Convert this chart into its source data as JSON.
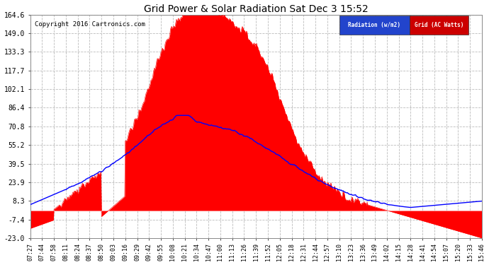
{
  "title": "Grid Power & Solar Radiation Sat Dec 3 15:52",
  "copyright": "Copyright 2016 Cartronics.com",
  "background_color": "#ffffff",
  "plot_bg_color": "#ffffff",
  "grid_color": "#bbbbbb",
  "yticks": [
    -23.0,
    -7.4,
    8.3,
    23.9,
    39.5,
    55.2,
    70.8,
    86.4,
    102.1,
    117.7,
    133.3,
    149.0,
    164.6
  ],
  "ylim": [
    -23.0,
    164.6
  ],
  "radiation_color": "#0000ff",
  "grid_fill_color": "#ff0000",
  "legend_radiation_bg": "#0000cc",
  "legend_grid_bg": "#cc0000",
  "xtick_labels": [
    "07:27",
    "07:44",
    "07:58",
    "08:11",
    "08:24",
    "08:37",
    "08:50",
    "09:03",
    "09:16",
    "09:29",
    "09:42",
    "09:55",
    "10:08",
    "10:21",
    "10:34",
    "10:47",
    "11:00",
    "11:13",
    "11:26",
    "11:39",
    "11:52",
    "12:05",
    "12:18",
    "12:31",
    "12:44",
    "12:57",
    "13:10",
    "13:23",
    "13:36",
    "13:49",
    "14:02",
    "14:15",
    "14:28",
    "14:41",
    "14:54",
    "15:07",
    "15:20",
    "15:33",
    "15:46"
  ]
}
